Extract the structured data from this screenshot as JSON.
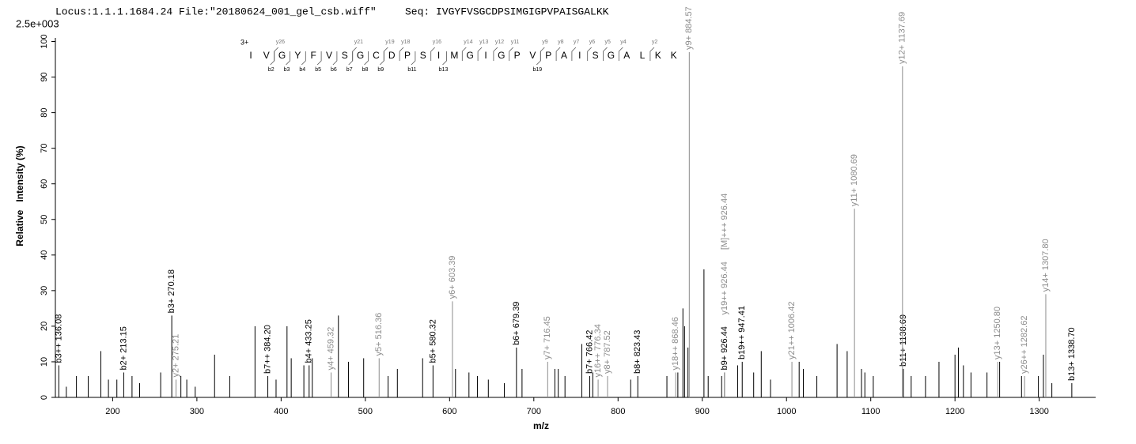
{
  "chart_data": {
    "type": "spectrum",
    "header_locus": "Locus:1.1.1.1684.24 File:\"20180624_001_gel_csb.wiff\"",
    "header_seq": "Seq: IVGYFVSGCDPSIMGIGPVPAISGALKK",
    "scale_label": "2.5e+003",
    "xlabel": "m/z",
    "ylabel": "Relative   Intensity (%)",
    "xlim": [
      132,
      1367
    ],
    "ylim": [
      0,
      101
    ],
    "xticks": [
      200,
      300,
      400,
      500,
      600,
      700,
      800,
      900,
      1000,
      1100,
      1200,
      1300
    ],
    "yticks": [
      0,
      10,
      20,
      30,
      40,
      50,
      60,
      70,
      80,
      90,
      100
    ],
    "series": [
      {
        "color": "#000000",
        "x": [
          145,
          157,
          171,
          186,
          195,
          205,
          223,
          232,
          257,
          281,
          288,
          298,
          321,
          339,
          369,
          394,
          407,
          412,
          427,
          437,
          468,
          480,
          498,
          527,
          538,
          568,
          607,
          623,
          633,
          646,
          665,
          686,
          725,
          729,
          737,
          757,
          770,
          815,
          858,
          871,
          877,
          879,
          883,
          902,
          907,
          923,
          942,
          961,
          970,
          981,
          1015,
          1020,
          1036,
          1060,
          1072,
          1089,
          1093,
          1103,
          1148,
          1165,
          1181,
          1200,
          1204,
          1210,
          1219,
          1238,
          1253,
          1279,
          1299,
          1305,
          1315
        ],
        "values": [
          3,
          6,
          6,
          13,
          5,
          5,
          6,
          4,
          7,
          6,
          5,
          3,
          12,
          6,
          20,
          5,
          20,
          11,
          9,
          11,
          23,
          10,
          11,
          6,
          8,
          11,
          8,
          7,
          6,
          5,
          4,
          8,
          8,
          8,
          6,
          15,
          7,
          5,
          6,
          7,
          25,
          20,
          14,
          36,
          6,
          6,
          9,
          7,
          13,
          5,
          10,
          8,
          6,
          15,
          13,
          8,
          7,
          6,
          6,
          6,
          10,
          12,
          14,
          9,
          7,
          7,
          10,
          6,
          6,
          12,
          4
        ]
      },
      {
        "color": "#000000",
        "x": [
          136.08,
          213.15,
          270.18,
          384.2,
          433.25,
          580.32,
          679.39,
          766.42,
          823.43,
          926.44,
          947.41,
          1138.69,
          1338.7
        ],
        "values": [
          9,
          7,
          23,
          6,
          9,
          9,
          14,
          6,
          6,
          7,
          10,
          8,
          4
        ],
        "labels": [
          "b3++ 136.08",
          "b2+ 213.15",
          "b3+ 270.18",
          "b7++ 384.20",
          "b4+ 433.25",
          "b5+ 580.32",
          "b6+ 679.39",
          "b7+ 766.42",
          "b8+ 823.43",
          "b9+ 926.44",
          "b19++ 947.41",
          "b11+ 1138.69",
          "b13+ 1338.70"
        ]
      },
      {
        "color": "#8c8c8c",
        "x": [
          275.21,
          459.32,
          516.36,
          603.39,
          716.45,
          776.34,
          787.52,
          868.46,
          884.57,
          926.44,
          926.44,
          1006.42,
          1080.69,
          1137.69,
          1250.8,
          1282.62,
          1307.8
        ],
        "values": [
          5,
          7,
          11,
          27,
          10,
          5,
          6,
          7,
          97,
          7,
          7,
          10,
          53,
          93,
          10,
          6,
          29
        ],
        "labels": [
          "y2+ 275.21",
          "y4+ 459.32",
          "y5+ 516.36",
          "y6+ 603.39",
          "y7+ 716.45",
          "y16++ 776.34",
          "y8+ 787.52",
          "y18++ 868.46",
          "y9+ 884.57",
          "y19++ 926.44",
          "[M]+++ 926.44",
          "y21++ 1006.42",
          "y11+ 1080.69",
          "y12+ 1137.69",
          "y13+ 1250.80",
          "y26++ 1282.62",
          "y14+ 1307.80"
        ]
      }
    ],
    "sequence": {
      "charge": "3+",
      "residues": [
        "I",
        "V",
        "G",
        "Y",
        "F",
        "V",
        "S",
        "G",
        "C",
        "D",
        "P",
        "S",
        "I",
        "M",
        "G",
        "I",
        "G",
        "P",
        "V",
        "P",
        "A",
        "I",
        "S",
        "G",
        "A",
        "L",
        "K",
        "K"
      ],
      "y_ions": [
        null,
        null,
        "y26",
        null,
        null,
        null,
        null,
        "y21",
        null,
        "y19",
        "y18",
        null,
        "y16",
        null,
        "y14",
        "y13",
        "y12",
        "y11",
        null,
        "y9",
        "y8",
        "y7",
        "y6",
        "y5",
        "y4",
        null,
        "y2",
        null
      ],
      "b_ions": [
        null,
        "b2",
        "b3",
        "b4",
        "b5",
        "b6",
        "b7",
        "b8",
        "b9",
        null,
        "b11",
        null,
        "b13",
        null,
        null,
        null,
        null,
        null,
        "b19",
        null,
        null,
        null,
        null,
        null,
        null,
        null,
        null,
        null
      ]
    }
  }
}
